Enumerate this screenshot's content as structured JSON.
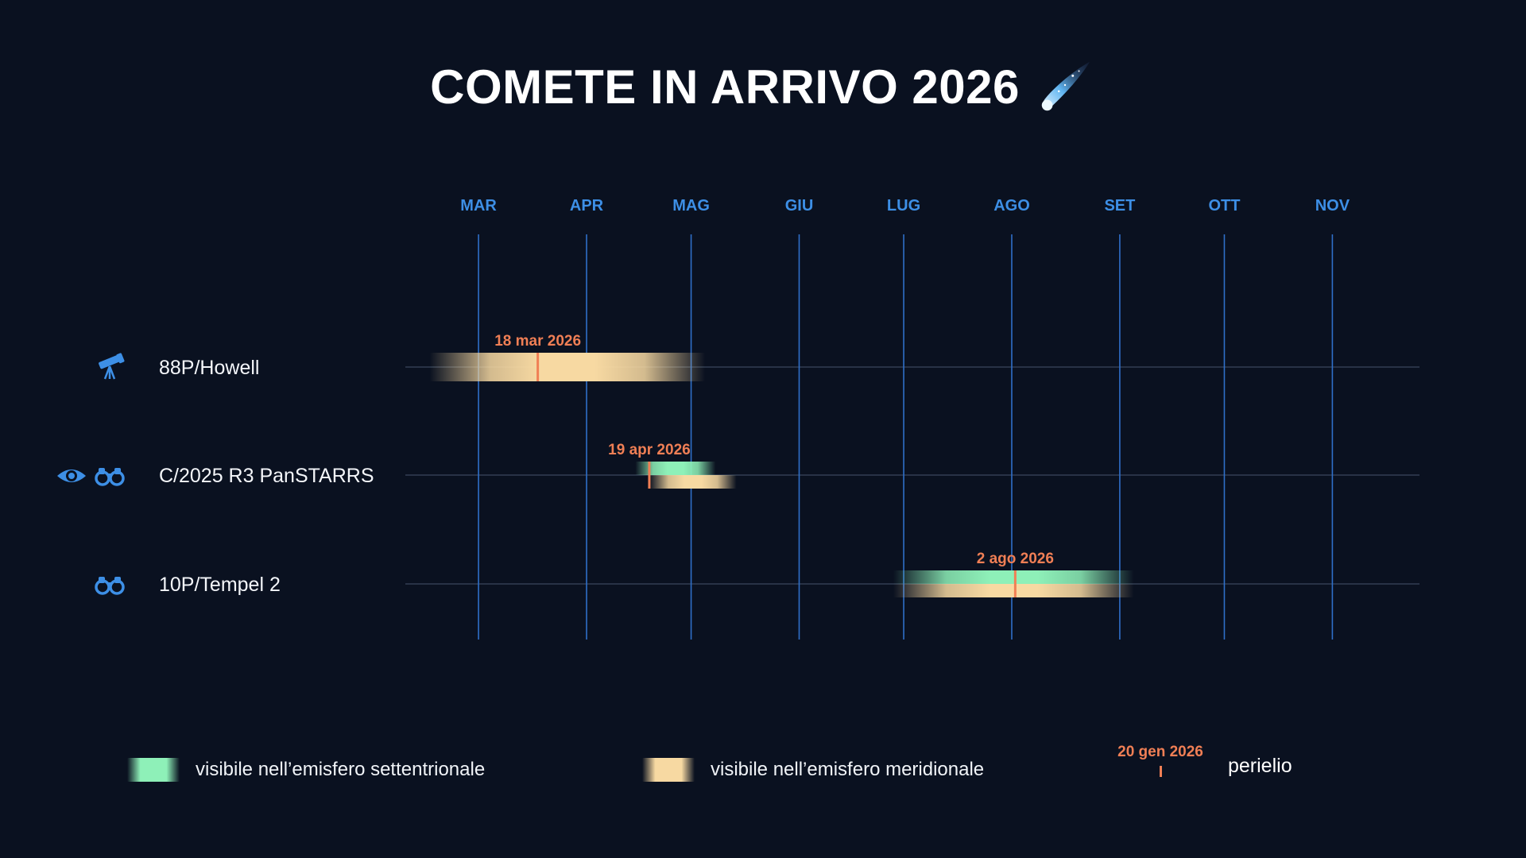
{
  "title": "COMETE IN ARRIVO 2026",
  "title_icon": "comet-icon",
  "colors": {
    "background": "#0a1120",
    "month_label": "#3d8fe6",
    "gridline": "#2f6fc8",
    "row_line": "#3a475c",
    "perihelion": "#f07f55",
    "north": "#8ef0b8",
    "south": "#f7d9a2",
    "icon": "#3d8fe6"
  },
  "chart_data": {
    "type": "gantt",
    "x_axis": {
      "ticks": [
        "MAR",
        "APR",
        "MAG",
        "GIU",
        "LUG",
        "AGO",
        "SET",
        "OTT",
        "NOV"
      ],
      "tick_dates": [
        "2026-03-01",
        "2026-04-01",
        "2026-05-01",
        "2026-06-01",
        "2026-07-01",
        "2026-08-01",
        "2026-09-01",
        "2026-10-01",
        "2026-11-01"
      ],
      "range": [
        "2026-02-08",
        "2026-11-26"
      ],
      "grid": true
    },
    "series": [
      {
        "name": "visibile nell’emisfero settentrionale",
        "key": "north",
        "color": "#8ef0b8"
      },
      {
        "name": "visibile nell’emisfero meridionale",
        "key": "south",
        "color": "#f7d9a2"
      }
    ],
    "comets": [
      {
        "name": "88P/Howell",
        "icons": [
          "telescope-icon"
        ],
        "perihelion": "2026-03-18",
        "perihelion_label": "18 mar 2026",
        "north": null,
        "south": [
          "2026-02-15",
          "2026-05-05"
        ]
      },
      {
        "name": "C/2025 R3 PanSTARRS",
        "icons": [
          "eye-icon",
          "binoculars-icon"
        ],
        "perihelion": "2026-04-19",
        "perihelion_label": "19 apr 2026",
        "north": [
          "2026-04-15",
          "2026-05-08"
        ],
        "south": [
          "2026-04-19",
          "2026-05-14"
        ]
      },
      {
        "name": "10P/Tempel 2",
        "icons": [
          "binoculars-icon"
        ],
        "perihelion": "2026-08-02",
        "perihelion_label": "2 ago 2026",
        "north": [
          "2026-06-28",
          "2026-09-05"
        ],
        "south": [
          "2026-06-28",
          "2026-09-05"
        ]
      }
    ],
    "legend": {
      "north": "visibile nell’emisfero settentrionale",
      "south": "visibile nell’emisfero meridionale",
      "perihelion_example": "20 gen 2026",
      "perihelion": "perielio"
    }
  }
}
